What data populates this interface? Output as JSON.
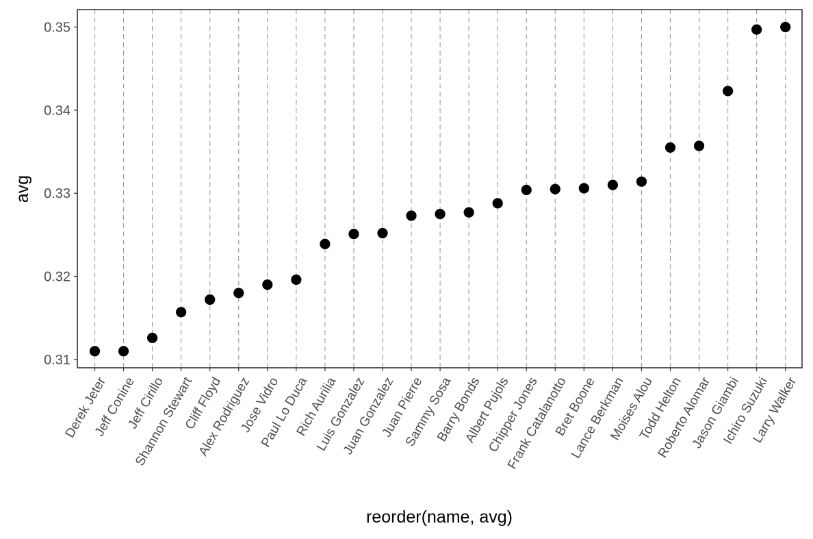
{
  "chart_data": {
    "type": "scatter",
    "title": "",
    "xlabel": "reorder(name, avg)",
    "ylabel": "avg",
    "ylim": [
      0.309,
      0.3521
    ],
    "y_ticks": [
      "0.31",
      "0.32",
      "0.33",
      "0.34",
      "0.35"
    ],
    "y_tick_values": [
      0.31,
      0.32,
      0.33,
      0.34,
      0.35
    ],
    "x_tick_angle": 60,
    "grid": "vertical dashed lines at each category",
    "legend": "none",
    "colors": {
      "point": "#000000",
      "grid": "#999999",
      "axis_text": "#4d4d4d",
      "axis_title": "#000000",
      "panel_border": "#333333"
    },
    "categories": [
      "Derek Jeter",
      "Jeff Conine",
      "Jeff Cirillo",
      "Shannon Stewart",
      "Cliff Floyd",
      "Alex Rodriguez",
      "Jose Vidro",
      "Paul Lo Duca",
      "Rich Aurilia",
      "Luis Gonzalez",
      "Juan Gonzalez",
      "Juan Pierre",
      "Sammy Sosa",
      "Barry Bonds",
      "Albert Pujols",
      "Chipper Jones",
      "Frank Catalanotto",
      "Bret Boone",
      "Lance Berkman",
      "Moises Alou",
      "Todd Helton",
      "Roberto Alomar",
      "Jason Giambi",
      "Ichiro Suzuki",
      "Larry Walker"
    ],
    "values": [
      0.311,
      0.311,
      0.3126,
      0.3157,
      0.3172,
      0.318,
      0.319,
      0.3196,
      0.3239,
      0.3251,
      0.3252,
      0.3273,
      0.3275,
      0.3277,
      0.3288,
      0.3304,
      0.3305,
      0.3306,
      0.331,
      0.3314,
      0.3355,
      0.3357,
      0.3423,
      0.3497,
      0.35
    ]
  }
}
